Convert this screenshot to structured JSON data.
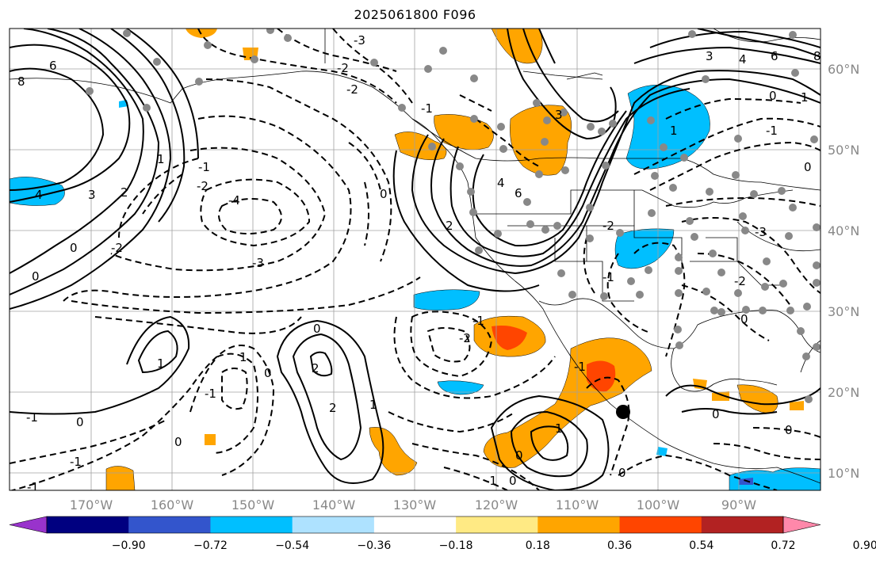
{
  "title": "2025061800 F096",
  "lat_labels": [
    "60°N",
    "50°N",
    "40°N",
    "30°N",
    "20°N",
    "10°N"
  ],
  "lon_labels": [
    "170°W",
    "160°W",
    "150°W",
    "140°W",
    "130°W",
    "120°W",
    "110°W",
    "100°W",
    "90°W"
  ],
  "colorbar": {
    "colors": [
      "#9933cc",
      "#000080",
      "#3355cc",
      "#00bfff",
      "#aee2ff",
      "#ffffff",
      "#ffea84",
      "#ffa500",
      "#ff4500",
      "#b22222",
      "#ff88aa"
    ],
    "tick_labels": [
      "−0.90",
      "−0.72",
      "−0.54",
      "−0.36",
      "−0.18",
      "0.18",
      "0.36",
      "0.54",
      "0.72",
      "0.90"
    ]
  },
  "contour_labels": [
    "8",
    "6",
    "4",
    "3",
    "2",
    "1",
    "0",
    "-1",
    "-2",
    "-3",
    "-4"
  ]
}
